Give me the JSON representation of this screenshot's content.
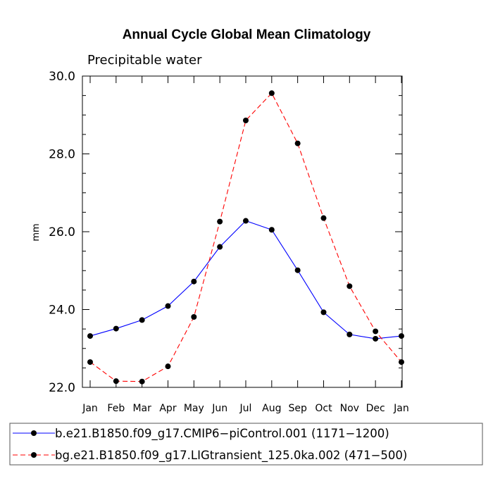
{
  "chart_data": {
    "type": "line",
    "title": "Annual Cycle Global Mean Climatology",
    "subtitle": "Precipitable water",
    "xlabel": "",
    "ylabel": "mm",
    "categories": [
      "Jan",
      "Feb",
      "Mar",
      "Apr",
      "May",
      "Jun",
      "Jul",
      "Aug",
      "Sep",
      "Oct",
      "Nov",
      "Dec",
      "Jan"
    ],
    "ylim": [
      22.0,
      30.0
    ],
    "ytick_labels": [
      "22.0",
      "24.0",
      "26.0",
      "28.0",
      "30.0"
    ],
    "grid": false,
    "legend_position": "bottom",
    "series": [
      {
        "name": "b.e21.B1850.f09_g17.CMIP6−piControl.001 (1171−1200)",
        "color": "#0000ff",
        "line_style": "solid",
        "values": [
          23.32,
          23.51,
          23.73,
          24.09,
          24.72,
          25.61,
          26.28,
          26.05,
          25.01,
          23.93,
          23.36,
          23.25,
          23.32
        ]
      },
      {
        "name": "bg.e21.B1850.f09_g17.LIGtransient_125.0ka.002 (471−500)",
        "color": "#ff0000",
        "line_style": "dashed",
        "values": [
          22.65,
          22.16,
          22.15,
          22.54,
          23.81,
          26.26,
          28.86,
          29.56,
          28.27,
          26.35,
          24.6,
          23.44,
          22.65
        ]
      }
    ]
  }
}
